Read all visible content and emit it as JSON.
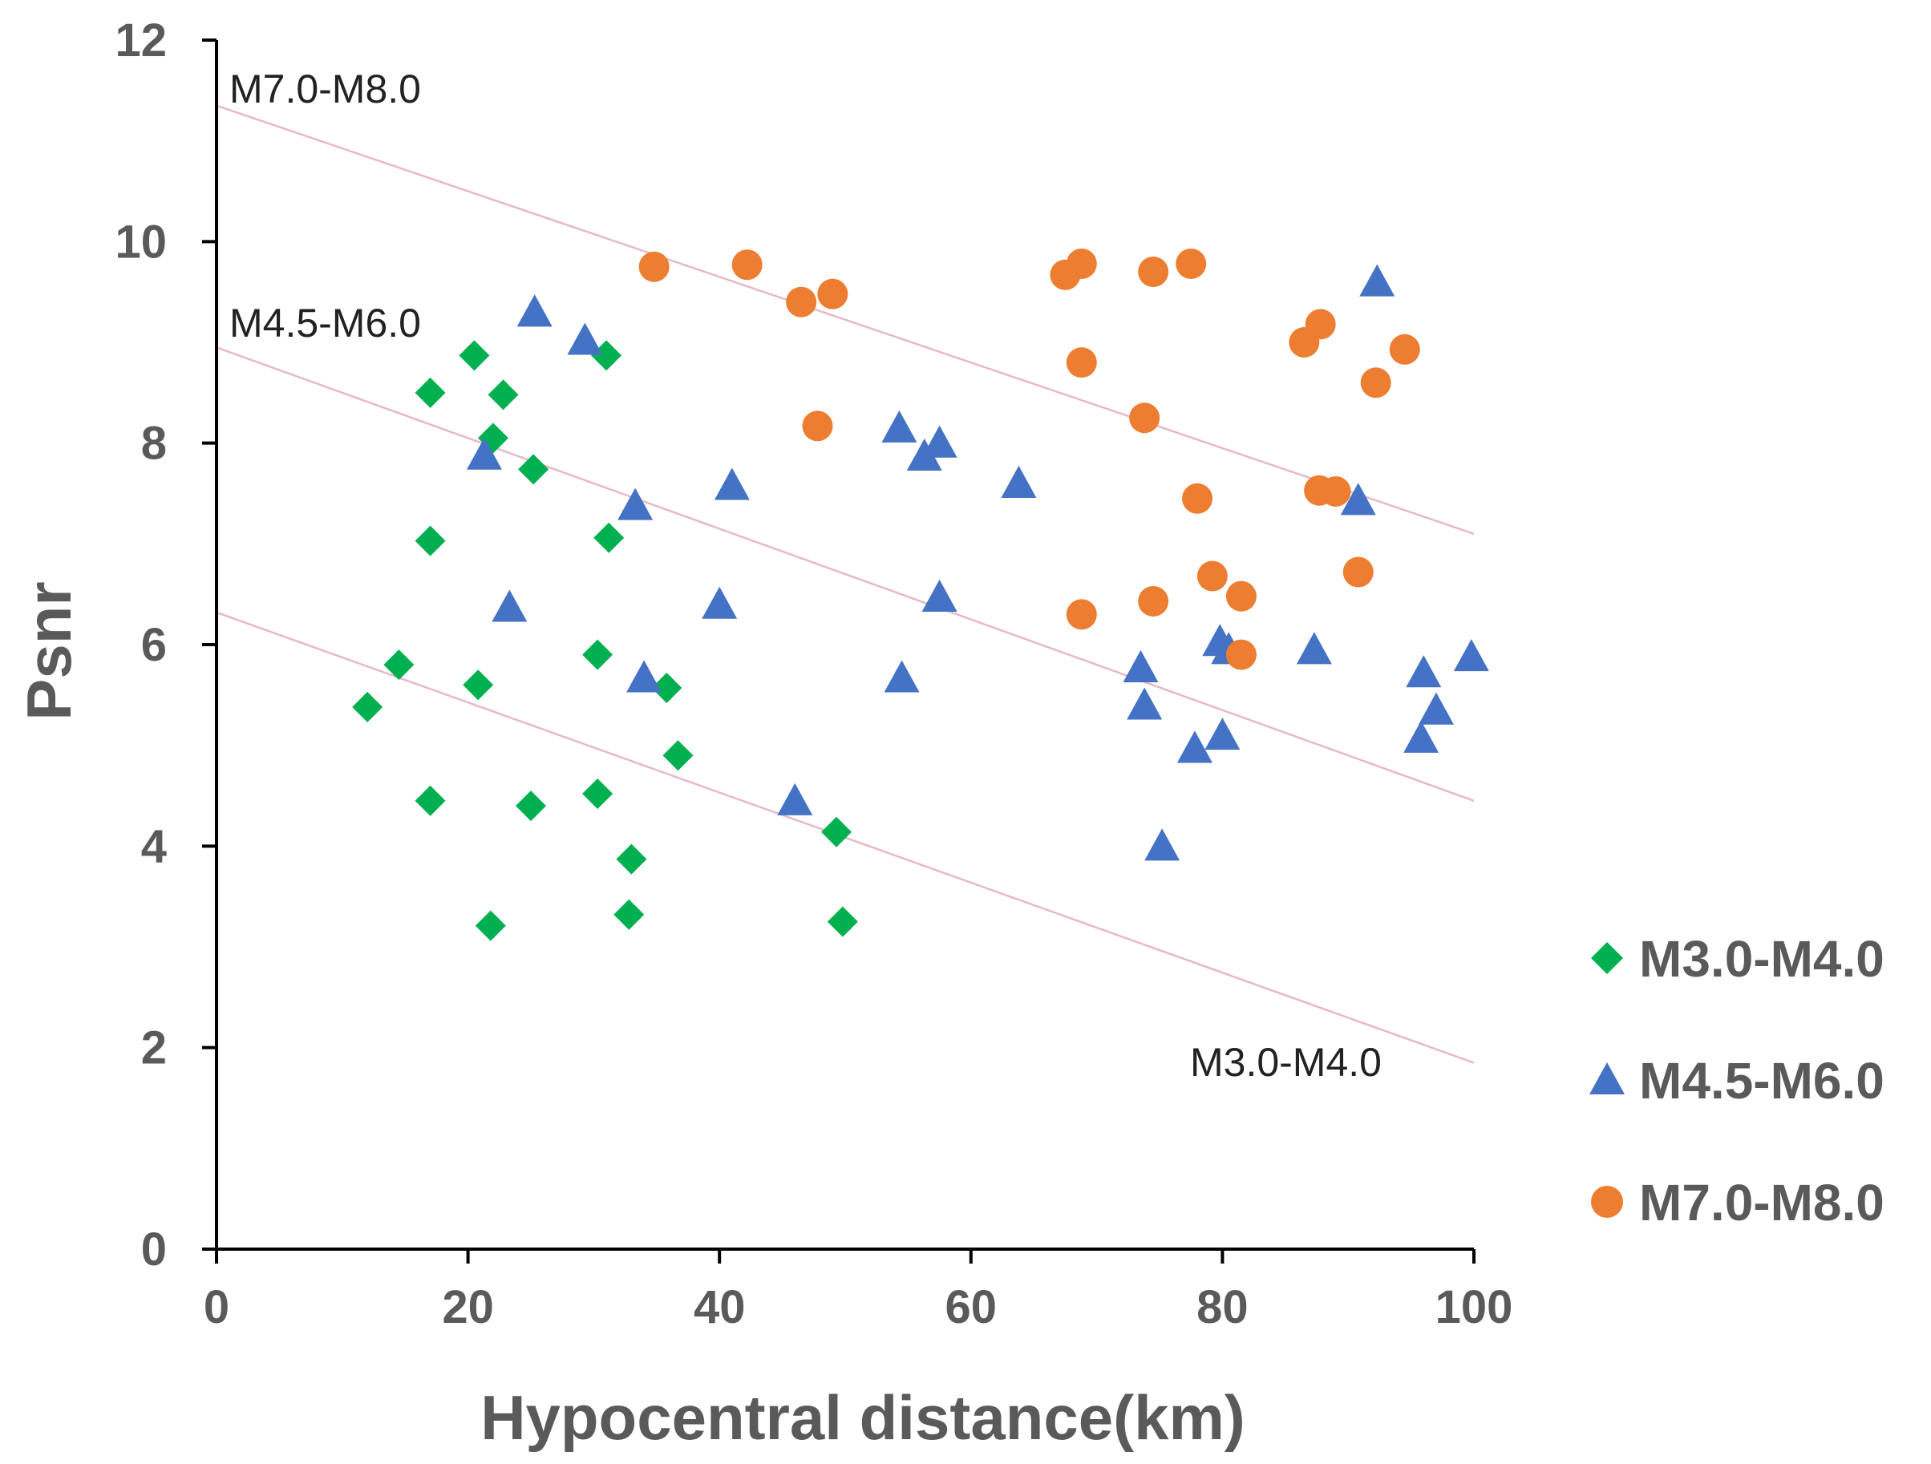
{
  "chart_data": {
    "type": "scatter",
    "title": "",
    "xlabel": "Hypocentral distance(km)",
    "ylabel": "Psnr",
    "xlim": [
      0,
      100
    ],
    "ylim": [
      0,
      12
    ],
    "xticks": [
      0,
      20,
      40,
      60,
      80,
      100
    ],
    "yticks": [
      0,
      2,
      4,
      6,
      8,
      10,
      12
    ],
    "grid": false,
    "legend_position": "right",
    "series": [
      {
        "name": "M3.0-M4.0",
        "marker": "diamond",
        "color": "#00b050",
        "points": [
          [
            20.5,
            8.87
          ],
          [
            31.0,
            8.87
          ],
          [
            17.0,
            8.5
          ],
          [
            22.8,
            8.48
          ],
          [
            22.0,
            8.05
          ],
          [
            25.2,
            7.74
          ],
          [
            17.0,
            7.03
          ],
          [
            31.2,
            7.06
          ],
          [
            30.3,
            5.9
          ],
          [
            14.5,
            5.8
          ],
          [
            20.8,
            5.6
          ],
          [
            35.8,
            5.57
          ],
          [
            12.0,
            5.38
          ],
          [
            36.7,
            4.9
          ],
          [
            30.3,
            4.52
          ],
          [
            17.0,
            4.45
          ],
          [
            25.0,
            4.4
          ],
          [
            49.3,
            4.14
          ],
          [
            33.0,
            3.87
          ],
          [
            32.8,
            3.32
          ],
          [
            49.8,
            3.25
          ],
          [
            21.8,
            3.21
          ]
        ]
      },
      {
        "name": "M4.5-M6.0",
        "marker": "triangle",
        "color": "#4472c4",
        "points": [
          [
            25.3,
            9.3
          ],
          [
            29.3,
            9.02
          ],
          [
            21.3,
            7.88
          ],
          [
            33.3,
            7.38
          ],
          [
            41.0,
            7.58
          ],
          [
            54.3,
            8.15
          ],
          [
            56.3,
            7.87
          ],
          [
            57.5,
            8.0
          ],
          [
            63.8,
            7.6
          ],
          [
            40.0,
            6.4
          ],
          [
            23.3,
            6.37
          ],
          [
            57.5,
            6.47
          ],
          [
            34.0,
            5.67
          ],
          [
            54.5,
            5.67
          ],
          [
            46.0,
            4.45
          ],
          [
            73.5,
            5.77
          ],
          [
            73.8,
            5.4
          ],
          [
            79.8,
            6.03
          ],
          [
            80.5,
            5.95
          ],
          [
            77.8,
            4.97
          ],
          [
            80.0,
            5.1
          ],
          [
            75.2,
            4.0
          ],
          [
            87.3,
            5.95
          ],
          [
            90.8,
            7.43
          ],
          [
            92.3,
            9.6
          ],
          [
            96.0,
            5.72
          ],
          [
            95.8,
            5.07
          ],
          [
            97.0,
            5.35
          ],
          [
            99.8,
            5.88
          ]
        ]
      },
      {
        "name": "M7.0-M8.0",
        "marker": "circle",
        "color": "#ed7d31",
        "points": [
          [
            34.8,
            9.75
          ],
          [
            42.2,
            9.77
          ],
          [
            46.5,
            9.4
          ],
          [
            49.0,
            9.48
          ],
          [
            47.8,
            8.17
          ],
          [
            67.5,
            9.67
          ],
          [
            68.8,
            9.78
          ],
          [
            74.5,
            9.7
          ],
          [
            77.5,
            9.78
          ],
          [
            68.8,
            8.8
          ],
          [
            73.8,
            8.25
          ],
          [
            78.0,
            7.45
          ],
          [
            79.2,
            6.68
          ],
          [
            81.5,
            6.48
          ],
          [
            81.5,
            5.9
          ],
          [
            68.8,
            6.3
          ],
          [
            74.5,
            6.43
          ],
          [
            86.5,
            9.0
          ],
          [
            87.8,
            9.18
          ],
          [
            92.2,
            8.6
          ],
          [
            94.5,
            8.93
          ],
          [
            87.7,
            7.53
          ],
          [
            89.0,
            7.52
          ],
          [
            90.8,
            6.72
          ]
        ]
      }
    ],
    "trend_lines": [
      {
        "label": "M7.0-M8.0",
        "start": [
          0,
          11.35
        ],
        "end": [
          100,
          7.1
        ]
      },
      {
        "label": "M4.5-M6.0",
        "start": [
          0,
          8.95
        ],
        "end": [
          100,
          4.45
        ]
      },
      {
        "label": "M3.0-M4.0",
        "start": [
          0,
          6.32
        ],
        "end": [
          100,
          1.85
        ]
      }
    ],
    "line_color": "#e6b8c8"
  },
  "annotations": {
    "m7_line_label": "M7.0-M8.0",
    "m45_line_label": "M4.5-M6.0",
    "m3_line_label": "M3.0-M4.0"
  }
}
